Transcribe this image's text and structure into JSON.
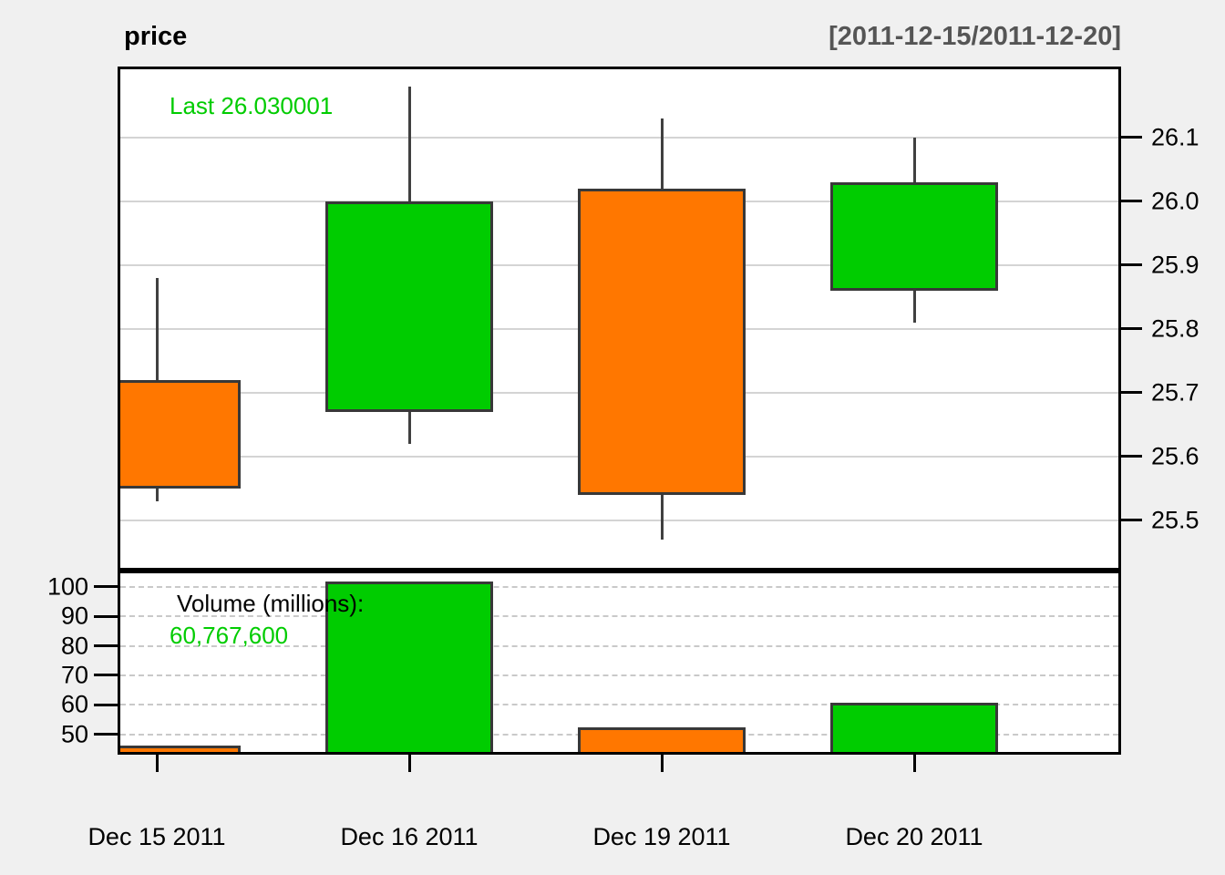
{
  "title": "price",
  "date_range": "[2011-12-15/2011-12-20]",
  "price_panel": {
    "legend_last_label": "Last 26.030001"
  },
  "volume_panel": {
    "legend_label": "Volume (millions):",
    "legend_value": "60,767,600"
  },
  "colors": {
    "up": "#00CC00",
    "down": "#FF7700",
    "candle_border": "#383838",
    "legend_green": "#00CC00",
    "range_gray": "#555555",
    "figure_bg": "#F0F0F0",
    "panel_bg": "#FFFFFF"
  },
  "chart_data": [
    {
      "type": "candlestick",
      "title": "price",
      "subtitle": "[2011-12-15/2011-12-20]",
      "x_labels": [
        "Dec 15 2011",
        "Dec 16 2011",
        "Dec 19 2011",
        "Dec 20 2011"
      ],
      "series": [
        {
          "date": "Dec 15 2011",
          "open": 25.72,
          "high": 25.88,
          "low": 25.53,
          "close": 25.55,
          "direction": "down"
        },
        {
          "date": "Dec 16 2011",
          "open": 25.67,
          "high": 26.18,
          "low": 25.62,
          "close": 26.0,
          "direction": "up"
        },
        {
          "date": "Dec 19 2011",
          "open": 26.02,
          "high": 26.13,
          "low": 25.47,
          "close": 25.54,
          "direction": "down"
        },
        {
          "date": "Dec 20 2011",
          "open": 25.86,
          "high": 26.1,
          "low": 25.81,
          "close": 26.03,
          "direction": "up"
        }
      ],
      "y_ticks": [
        "25.5",
        "25.6",
        "25.7",
        "25.8",
        "25.9",
        "26.0",
        "26.1"
      ],
      "ylim": [
        25.425,
        26.207
      ],
      "last": 26.030001,
      "legend": "Last 26.030001",
      "grid": "horizontal-solid",
      "axis_position": "right"
    },
    {
      "type": "bar",
      "title": "Volume (millions)",
      "categories": [
        "Dec 15 2011",
        "Dec 16 2011",
        "Dec 19 2011",
        "Dec 20 2011"
      ],
      "values": [
        46.1,
        101.9,
        52.4,
        60.8
      ],
      "last_volume_label": "60,767,600",
      "y_ticks": [
        "50",
        "60",
        "70",
        "80",
        "90",
        "100"
      ],
      "ylim": [
        44.0,
        104.6
      ],
      "grid": "horizontal-dashed",
      "axis_position": "left"
    }
  ]
}
